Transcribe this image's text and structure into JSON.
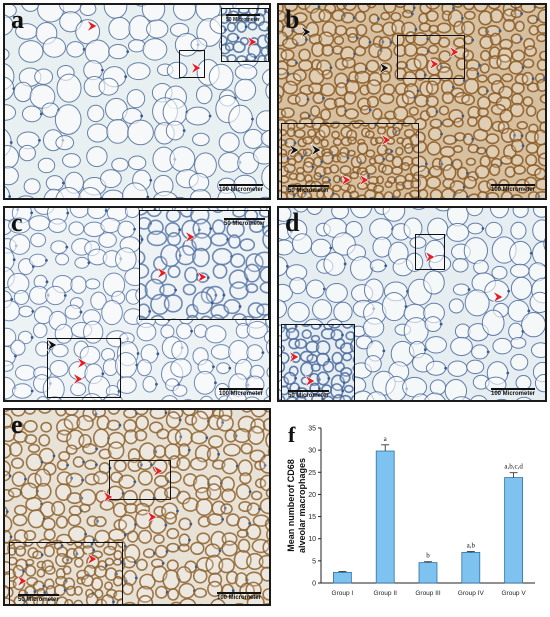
{
  "panels": {
    "a": {
      "label": "a",
      "scale_main": "100 Micrometer",
      "scale_inset": "50 Micrometer",
      "bg": "#e9f0f1",
      "stroke": "#4f6e9b"
    },
    "b": {
      "label": "b",
      "scale_main": "100 Micrometer",
      "scale_inset": "50 Micrometer",
      "bg": "#d6c0a0",
      "stroke": "#8a5a26"
    },
    "c": {
      "label": "c",
      "scale_main": "100 Micrometer",
      "scale_inset": "50 Micrometer",
      "bg": "#edf2f4",
      "stroke": "#5b78a8"
    },
    "d": {
      "label": "d",
      "scale_main": "100 Micrometer",
      "scale_inset": "50 Micrometer",
      "bg": "#e6eef2",
      "stroke": "#4d6a9e"
    },
    "e": {
      "label": "e",
      "scale_main": "100 Micrometer",
      "scale_inset": "50 Micrometer",
      "bg": "#e8e2d6",
      "stroke": "#8e6432"
    },
    "f": {
      "label": "f"
    }
  },
  "arrow_color": "#e31e24",
  "arrow_dark_color": "#111111",
  "chart_data": {
    "type": "bar",
    "categories": [
      "Group I",
      "Group II",
      "Group III",
      "Group IV",
      "Group V"
    ],
    "values": [
      2.4,
      29.8,
      4.6,
      6.9,
      23.8
    ],
    "errors": [
      0.2,
      1.4,
      0.2,
      0.2,
      1.1
    ],
    "annotations": [
      "",
      "a",
      "b",
      "a,b",
      "a,b,c,d"
    ],
    "ylabel": "Mean numberof CD68 alveolar macrophages",
    "ylim": [
      0,
      35
    ],
    "yticks": [
      0,
      5,
      10,
      15,
      20,
      25,
      30,
      35
    ],
    "bar_color": "#7ec3ef",
    "bar_edge": "#2f6fa8",
    "grid": false
  }
}
